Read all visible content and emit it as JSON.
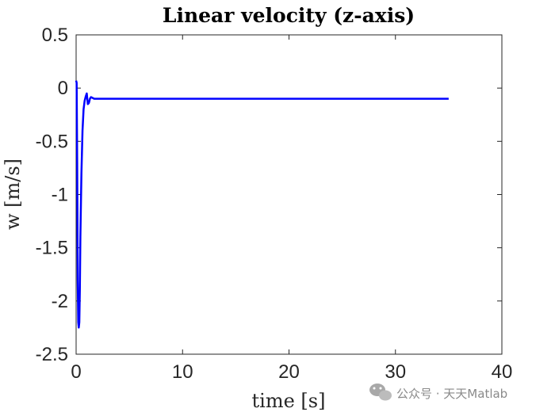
{
  "chart_data": {
    "type": "line",
    "title": "Linear velocity (z-axis)",
    "xlabel": "time [s]",
    "ylabel": "w [m/s]",
    "xlim": [
      0,
      40
    ],
    "ylim": [
      -2.5,
      0.5
    ],
    "xticks": [
      0,
      10,
      20,
      30,
      40
    ],
    "yticks": [
      0.5,
      0,
      -0.5,
      -1,
      -1.5,
      -2,
      -2.5
    ],
    "grid": false,
    "legend": "none",
    "series": [
      {
        "color": "#0000ff",
        "x": [
          0,
          0.05,
          0.1,
          0.15,
          0.2,
          0.25,
          0.3,
          0.35,
          0.4,
          0.5,
          0.6,
          0.7,
          0.8,
          0.9,
          1.0,
          1.05,
          1.1,
          1.2,
          1.3,
          1.4,
          1.5,
          1.7,
          2.0,
          2.5,
          3,
          5,
          10,
          15,
          20,
          25,
          30,
          35
        ],
        "y": [
          0.07,
          0.05,
          -0.7,
          -1.8,
          -2.2,
          -2.25,
          -2.2,
          -1.9,
          -1.4,
          -0.8,
          -0.4,
          -0.2,
          -0.12,
          -0.08,
          -0.05,
          -0.1,
          -0.15,
          -0.14,
          -0.1,
          -0.085,
          -0.09,
          -0.1,
          -0.1,
          -0.1,
          -0.1,
          -0.1,
          -0.1,
          -0.1,
          -0.1,
          -0.1,
          -0.1,
          -0.1
        ]
      }
    ]
  },
  "watermark": {
    "text": "公众号 · 天天Matlab",
    "icon": "wechat-icon",
    "color": "#9a9a9a"
  }
}
